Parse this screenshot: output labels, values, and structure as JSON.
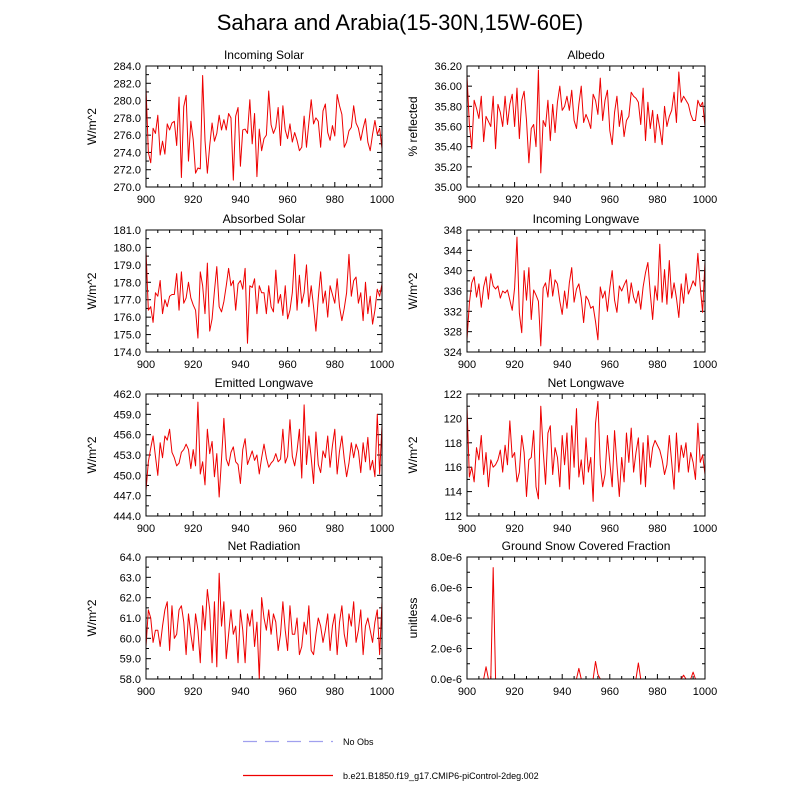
{
  "figure": {
    "title": "Sahara and Arabia(15-30N,15W-60E)"
  },
  "legend": {
    "items": [
      {
        "label": "No Obs",
        "color": "#a0a0ee",
        "dash": true
      },
      {
        "label": "b.e21.B1850.f19_g17.CMIP6-piControl-2deg.002",
        "color": "#ee0000",
        "dash": false
      }
    ]
  },
  "colors": {
    "series": "#ee0000",
    "axis": "#000000",
    "obs": "#a0a0ee"
  },
  "chart_data": [
    {
      "type": "line",
      "title": "Incoming Solar",
      "ylabel": "W/m^2",
      "xlabel": "",
      "xlim": [
        900,
        1000
      ],
      "ylim": [
        270,
        284
      ],
      "xticks": [
        900,
        920,
        940,
        960,
        980,
        1000
      ],
      "yticks": [
        "270.0",
        "272.0",
        "274.0",
        "276.0",
        "278.0",
        "280.0",
        "282.0",
        "284.0"
      ],
      "series": [
        {
          "values": [
            281.5,
            274,
            272.8,
            276.8,
            276.2,
            278.3,
            273.7,
            275.3,
            273.8,
            277.3,
            276.6,
            277.4,
            277.6,
            274.8,
            280.4,
            271.1,
            279.3,
            280.6,
            273,
            277.6,
            275.5,
            271.6,
            272.2,
            272.1,
            282.9,
            275.4,
            271.6,
            274.8,
            277.4,
            275.3,
            276.2,
            278.3,
            276.6,
            277.8,
            276.6,
            278.5,
            278,
            270.8,
            278.2,
            279.2,
            272.4,
            276.6,
            276.7,
            276.2,
            280.1,
            275,
            278.5,
            271.2,
            276.7,
            274.2,
            275.6,
            276,
            281.1,
            277.2,
            276.2,
            276.9,
            279.2,
            274.8,
            279.4,
            276.6,
            275.6,
            277.3,
            275.2,
            276.3,
            275.4,
            274.2,
            274.6,
            278.2,
            274.6,
            277.4,
            280.1,
            277.3,
            278,
            277.6,
            274.6,
            278.8,
            279.6,
            276.3,
            275.4,
            277.1,
            275.9,
            280.7,
            279.4,
            278.4,
            274.6,
            275.2,
            276.5,
            276.9,
            279.4,
            277.4,
            276.8,
            275.4,
            276.8,
            277.9,
            275.2,
            274.2,
            276.1,
            277.7,
            276.1,
            276.8,
            274.4
          ]
        }
      ]
    },
    {
      "type": "line",
      "title": "Albedo",
      "ylabel": "% reflected",
      "xlabel": "",
      "xlim": [
        900,
        1000
      ],
      "ylim": [
        35.0,
        36.2
      ],
      "xticks": [
        900,
        920,
        940,
        960,
        980,
        1000
      ],
      "yticks": [
        "35.00",
        "35.20",
        "35.40",
        "35.60",
        "35.80",
        "36.00",
        "36.20"
      ],
      "series": [
        {
          "values": [
            36.1,
            35.62,
            35.38,
            35.86,
            35.78,
            35.68,
            35.9,
            35.45,
            35.7,
            35.65,
            35.6,
            35.9,
            35.38,
            35.82,
            35.74,
            35.6,
            35.9,
            35.62,
            35.82,
            35.92,
            35.6,
            35.98,
            35.48,
            35.86,
            35.95,
            35.66,
            35.24,
            35.58,
            35.62,
            35.4,
            36.16,
            35.14,
            35.66,
            35.6,
            35.86,
            35.46,
            35.82,
            35.54,
            35.84,
            36.0,
            35.76,
            35.8,
            35.9,
            35.76,
            35.96,
            35.66,
            35.58,
            35.82,
            36.0,
            35.64,
            35.72,
            35.66,
            35.58,
            35.92,
            35.86,
            35.72,
            36.08,
            35.66,
            35.86,
            35.96,
            35.56,
            35.42,
            35.74,
            35.9,
            35.6,
            35.76,
            35.5,
            35.66,
            35.7,
            35.94,
            35.9,
            35.88,
            35.84,
            35.62,
            35.98,
            35.46,
            35.84,
            35.58,
            35.76,
            35.44,
            35.72,
            35.58,
            35.42,
            35.8,
            35.6,
            35.7,
            35.76,
            35.94,
            35.64,
            36.14,
            35.84,
            35.9,
            35.86,
            35.82,
            35.72,
            35.66,
            35.66,
            35.86,
            35.8,
            35.84,
            35.6
          ]
        }
      ]
    },
    {
      "type": "line",
      "title": "Absorbed Solar",
      "ylabel": "W/m^2",
      "xlabel": "",
      "xlim": [
        900,
        1000
      ],
      "ylim": [
        174,
        181
      ],
      "xticks": [
        900,
        920,
        940,
        960,
        980,
        1000
      ],
      "yticks": [
        "174.0",
        "175.0",
        "176.0",
        "177.0",
        "178.0",
        "179.0",
        "180.0",
        "181.0"
      ],
      "series": [
        {
          "values": [
            179.8,
            176.4,
            176.6,
            175.7,
            177.4,
            177.2,
            178.1,
            176.2,
            177,
            176.6,
            177.2,
            177.3,
            177.3,
            178.5,
            176.4,
            178.6,
            176.8,
            177.1,
            178,
            177.1,
            176.7,
            176.4,
            174.8,
            178.6,
            177.8,
            176.2,
            179.1,
            175.2,
            175.9,
            177.5,
            178.9,
            176.6,
            176.3,
            176.9,
            177.8,
            178.8,
            177.8,
            178.1,
            176.4,
            177.9,
            178.1,
            177.6,
            178.8,
            174.5,
            177.8,
            177.7,
            178.2,
            176.2,
            177.8,
            177.4,
            177.4,
            176.2,
            177.8,
            176.6,
            176.3,
            178.7,
            176.8,
            177.3,
            176.1,
            177.8,
            175.9,
            176.4,
            177.4,
            179.6,
            176.4,
            178.4,
            176.8,
            177.4,
            179,
            176.6,
            177.8,
            176.6,
            175.2,
            177.1,
            178.6,
            176.8,
            177.5,
            176,
            177.8,
            177.3,
            176.8,
            178.2,
            176.6,
            175.8,
            176.5,
            177.4,
            179.6,
            177.2,
            178.1,
            178.3,
            176.8,
            177.4,
            175.8,
            178,
            176.2,
            177.2,
            175.6,
            176.4,
            177.6,
            177.2,
            177.9
          ]
        }
      ]
    },
    {
      "type": "line",
      "title": "Incoming Longwave",
      "ylabel": "W/m^2",
      "xlabel": "",
      "xlim": [
        900,
        1000
      ],
      "ylim": [
        324,
        348
      ],
      "xticks": [
        900,
        920,
        940,
        960,
        980,
        1000
      ],
      "yticks": [
        "324",
        "328",
        "332",
        "336",
        "340",
        "344",
        "348"
      ],
      "series": [
        {
          "values": [
            326.5,
            333.6,
            337.6,
            338.8,
            334.8,
            337.4,
            332.8,
            336.8,
            338.8,
            334.4,
            339.4,
            337,
            336.4,
            337,
            334.6,
            336,
            335.6,
            336.2,
            334.2,
            332.2,
            336.6,
            346.6,
            331.6,
            327.8,
            340,
            334.2,
            340.6,
            330.4,
            336.2,
            335.2,
            334,
            325.2,
            336.6,
            337.6,
            334.8,
            340.2,
            335,
            338.2,
            337.4,
            334,
            331.4,
            336,
            332.6,
            337.6,
            340.6,
            333.8,
            336.4,
            337.4,
            334.6,
            329.8,
            335,
            334.2,
            332.6,
            333,
            330,
            326.4,
            336.8,
            334.6,
            336,
            332,
            336.6,
            340,
            334.2,
            331.8,
            337,
            336,
            337.2,
            338.2,
            333.6,
            337.6,
            334.8,
            333.6,
            336,
            332.4,
            336.8,
            339.6,
            341.6,
            335.6,
            330.4,
            337,
            334.2,
            345.2,
            333.8,
            340.2,
            333.4,
            342,
            334.6,
            337.6,
            334.6,
            330.8,
            337.4,
            333.6,
            339.4,
            335.4,
            336.6,
            338,
            337,
            343.4,
            336.8,
            331.8,
            341.8
          ]
        }
      ]
    },
    {
      "type": "line",
      "title": "Emitted Longwave",
      "ylabel": "W/m^2",
      "xlabel": "",
      "xlim": [
        900,
        1000
      ],
      "ylim": [
        444,
        462
      ],
      "xticks": [
        900,
        920,
        940,
        960,
        980,
        1000
      ],
      "yticks": [
        "444.0",
        "447.0",
        "450.0",
        "453.0",
        "456.0",
        "459.0",
        "462.0"
      ],
      "series": [
        {
          "values": [
            447.8,
            452,
            454,
            455.8,
            452.8,
            450,
            454.8,
            452.6,
            455.8,
            455.2,
            456.8,
            453.4,
            452.6,
            451.4,
            451.8,
            453.4,
            453.8,
            454.6,
            453.8,
            451,
            453.8,
            451.4,
            460.8,
            450.2,
            452,
            448.6,
            456.8,
            453.2,
            455,
            449.8,
            453.2,
            446.8,
            452.4,
            458.4,
            452.4,
            451.4,
            453.4,
            454.2,
            452,
            451.6,
            448.8,
            453.8,
            455.4,
            451.6,
            452.6,
            453.6,
            452.2,
            453,
            450.2,
            452.6,
            454.6,
            452.6,
            451.2,
            451.8,
            452.2,
            453.2,
            452,
            452.4,
            456.8,
            451.8,
            452.8,
            458.2,
            452.8,
            451.4,
            453.6,
            456.8,
            449.6,
            460.4,
            451.6,
            455.8,
            452.6,
            448.8,
            456.4,
            451.6,
            450.4,
            453.6,
            452.6,
            455.8,
            451.2,
            454.4,
            456.8,
            450.2,
            453.6,
            455.8,
            452.4,
            449.8,
            451.8,
            454.8,
            452.6,
            454.6,
            453.6,
            450.4,
            454.8,
            452,
            455.6,
            450.8,
            452.2,
            449.8,
            459,
            450.2,
            457.4
          ]
        }
      ]
    },
    {
      "type": "line",
      "title": "Net Longwave",
      "ylabel": "W/m^2",
      "xlabel": "",
      "xlim": [
        900,
        1000
      ],
      "ylim": [
        112,
        122
      ],
      "xticks": [
        900,
        920,
        940,
        960,
        980,
        1000
      ],
      "yticks": [
        "112",
        "114",
        "116",
        "118",
        "120",
        "122"
      ],
      "series": [
        {
          "values": [
            121,
            115.2,
            116,
            114.8,
            117.6,
            116.6,
            118.6,
            115.4,
            117.2,
            114.4,
            116.6,
            116,
            116.2,
            116.6,
            117.4,
            115.6,
            117.8,
            116.2,
            119.8,
            116.8,
            117.2,
            114.8,
            115.6,
            118.6,
            117.2,
            113.6,
            116.6,
            116.8,
            119,
            114.4,
            113.4,
            121,
            117.4,
            114.6,
            118.8,
            119.4,
            115.4,
            117.6,
            116.8,
            114.4,
            118.6,
            116.2,
            118.8,
            114.2,
            119.4,
            116,
            120.8,
            115.2,
            116.6,
            114.6,
            118.4,
            115.6,
            116.8,
            113.2,
            119.6,
            121.4,
            116.2,
            114.4,
            115.4,
            118.6,
            116.4,
            114.4,
            119,
            116.2,
            113.6,
            116.8,
            114.8,
            118.8,
            116.4,
            119.2,
            115.6,
            117.2,
            118.4,
            114.6,
            118,
            114.4,
            118.6,
            116,
            117.6,
            118.2,
            117.8,
            117.4,
            116.6,
            115.4,
            116.2,
            118.6,
            116.4,
            114.2,
            118.8,
            115.6,
            117.8,
            116.8,
            118,
            115.6,
            117.2,
            116.4,
            115,
            119.6,
            116.4,
            117,
            115.4
          ]
        }
      ]
    },
    {
      "type": "line",
      "title": "Net Radiation",
      "ylabel": "W/m^2",
      "xlabel": "",
      "xlim": [
        900,
        1000
      ],
      "ylim": [
        58,
        64
      ],
      "xticks": [
        900,
        920,
        940,
        960,
        980,
        1000
      ],
      "yticks": [
        "58.0",
        "59.0",
        "60.0",
        "61.0",
        "62.0",
        "63.0",
        "64.0"
      ],
      "series": [
        {
          "values": [
            59.6,
            61.4,
            61,
            59.8,
            60.4,
            60.4,
            59.6,
            60.6,
            61.4,
            61.8,
            59.4,
            61.6,
            60,
            60.2,
            61.4,
            61.6,
            60.8,
            59.2,
            61.2,
            60.2,
            59.4,
            61.2,
            60.4,
            58.8,
            61.6,
            60.4,
            62.4,
            61.4,
            58.8,
            61.8,
            58.6,
            63.2,
            60.6,
            61.8,
            59,
            60.2,
            61.4,
            60.2,
            60.6,
            58.8,
            61.4,
            60.4,
            58.8,
            61.2,
            60.6,
            61.4,
            59.6,
            60.8,
            58,
            62,
            61,
            60.4,
            61.4,
            60.2,
            61.2,
            60.8,
            59.4,
            60.2,
            61.8,
            60.4,
            59.4,
            61.6,
            60.2,
            60.2,
            61,
            59.2,
            59.6,
            60.8,
            60.2,
            61.6,
            59.4,
            59.2,
            60.2,
            61,
            60.6,
            59.8,
            60.4,
            61.2,
            59.4,
            60.6,
            61.2,
            59.2,
            60.8,
            61.6,
            60.2,
            59.6,
            61.2,
            60.6,
            61.8,
            59.8,
            60.4,
            61.4,
            59.2,
            60.6,
            61,
            60.4,
            59.8,
            60.8,
            61.4,
            59.2,
            61.8
          ]
        }
      ]
    },
    {
      "type": "line",
      "title": "Ground Snow Covered Fraction",
      "ylabel": "unitless",
      "xlabel": "",
      "xlim": [
        900,
        1000
      ],
      "ylim": [
        0,
        8e-06
      ],
      "xticks": [
        900,
        920,
        940,
        960,
        980,
        1000
      ],
      "yticks": [
        "0.0e-6",
        "2.0e-6",
        "4.0e-6",
        "6.0e-6",
        "8.0e-6"
      ],
      "series": [
        {
          "values": [
            0,
            0,
            0,
            0,
            0,
            0,
            0,
            0,
            8e-07,
            0,
            0,
            7.3e-06,
            0,
            0,
            0,
            0,
            0,
            0,
            0,
            0,
            0,
            0,
            0,
            0,
            0,
            0,
            0,
            0,
            0,
            0,
            0,
            0,
            0,
            0,
            0,
            0,
            0,
            0,
            0,
            0,
            0,
            0,
            0,
            0,
            0,
            0,
            0,
            7e-07,
            0,
            0,
            0,
            0,
            0,
            0,
            1.15e-06,
            3e-07,
            0,
            0,
            0,
            0,
            0,
            0,
            0,
            0,
            0,
            0,
            0,
            0,
            0,
            0,
            0,
            0,
            1.05e-06,
            0,
            0,
            0,
            0,
            0,
            0,
            0,
            0,
            0,
            0,
            0,
            0,
            0,
            0,
            0,
            0,
            0,
            0,
            2.5e-07,
            0,
            0,
            0,
            4.5e-07,
            0,
            0,
            0,
            0,
            0
          ]
        }
      ]
    }
  ]
}
